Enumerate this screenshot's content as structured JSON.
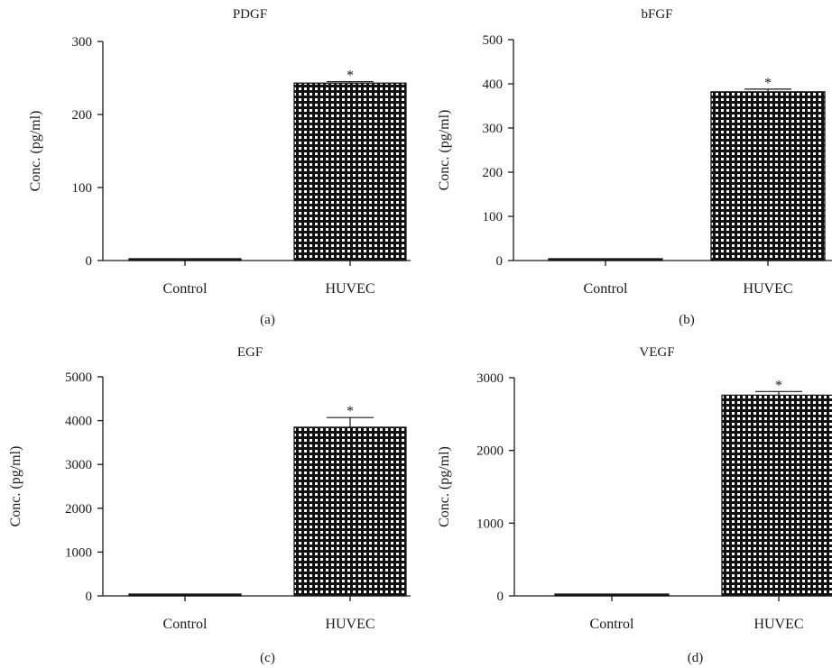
{
  "chart_data": [
    {
      "type": "bar",
      "title": "PDGF",
      "panel_label": "(a)",
      "ylabel": "Conc. (pg/ml)",
      "categories": [
        "Control",
        "HUVEC"
      ],
      "values": [
        2,
        243
      ],
      "error": [
        0,
        2
      ],
      "significance": [
        "",
        "*"
      ],
      "ylim": [
        0,
        300
      ],
      "yticks": [
        "0",
        "100",
        "200",
        "300"
      ]
    },
    {
      "type": "bar",
      "title": "bFGF",
      "panel_label": "(b)",
      "ylabel": "Conc. (pg/ml)",
      "categories": [
        "Control",
        "HUVEC"
      ],
      "values": [
        3,
        382
      ],
      "error": [
        0,
        6
      ],
      "significance": [
        "",
        "*"
      ],
      "ylim": [
        0,
        500
      ],
      "yticks": [
        "0",
        "100",
        "200",
        "300",
        "400",
        "500"
      ]
    },
    {
      "type": "bar",
      "title": "EGF",
      "panel_label": "(c)",
      "ylabel": "Conc. (pg/ml)",
      "categories": [
        "Control",
        "HUVEC"
      ],
      "values": [
        30,
        3850
      ],
      "error": [
        0,
        220
      ],
      "significance": [
        "",
        "*"
      ],
      "ylim": [
        0,
        5000
      ],
      "yticks": [
        "0",
        "1000",
        "2000",
        "3000",
        "4000",
        "5000"
      ]
    },
    {
      "type": "bar",
      "title": "VEGF",
      "panel_label": "(d)",
      "ylabel": "Conc. (pg/ml)",
      "categories": [
        "Control",
        "HUVEC"
      ],
      "values": [
        20,
        2760
      ],
      "error": [
        0,
        50
      ],
      "significance": [
        "",
        "*"
      ],
      "ylim": [
        0,
        3000
      ],
      "yticks": [
        "0",
        "1000",
        "2000",
        "3000"
      ]
    }
  ],
  "colors": {
    "ink": "#1a1a1a",
    "bar_fill": "#111111",
    "bar_dots": "#ffffff"
  }
}
